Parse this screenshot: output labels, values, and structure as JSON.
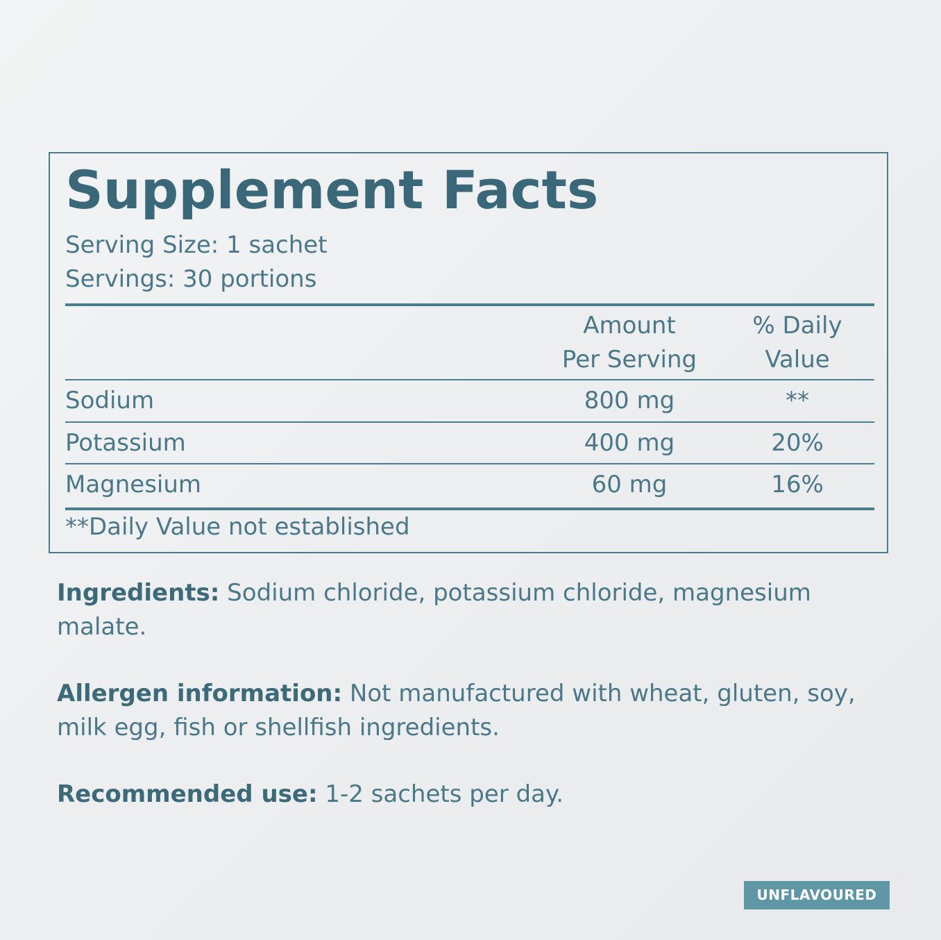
{
  "facts": {
    "title": "Supplement Facts",
    "serving_size": "Serving Size: 1 sachet",
    "servings": "Servings: 30 portions",
    "headers": {
      "amount_line1": "Amount",
      "amount_line2": "Per Serving",
      "dv_line1": "% Daily",
      "dv_line2": "Value"
    },
    "rows": [
      {
        "nutrient": "Sodium",
        "amount": "800 mg",
        "dv": "**"
      },
      {
        "nutrient": "Potassium",
        "amount": "400 mg",
        "dv": "20%"
      },
      {
        "nutrient": "Magnesium",
        "amount": "60 mg",
        "dv": "16%"
      }
    ],
    "footnote": "**Daily Value not established"
  },
  "info": {
    "ingredients_label": "Ingredients:",
    "ingredients_text": " Sodium chloride, potassium chloride, magnesium malate.",
    "allergen_label": "Allergen information:",
    "allergen_text": " Not manufactured with wheat, gluten, soy, milk egg, fish or shellfish ingredients.",
    "use_label": "Recommended use:",
    "use_text": " 1-2 sachets per day."
  },
  "badge": {
    "label": "UNFLAVOURED"
  },
  "colors": {
    "primary": "#3d6a78",
    "border": "#4a7d8c",
    "badge_bg": "#5f97a6"
  }
}
